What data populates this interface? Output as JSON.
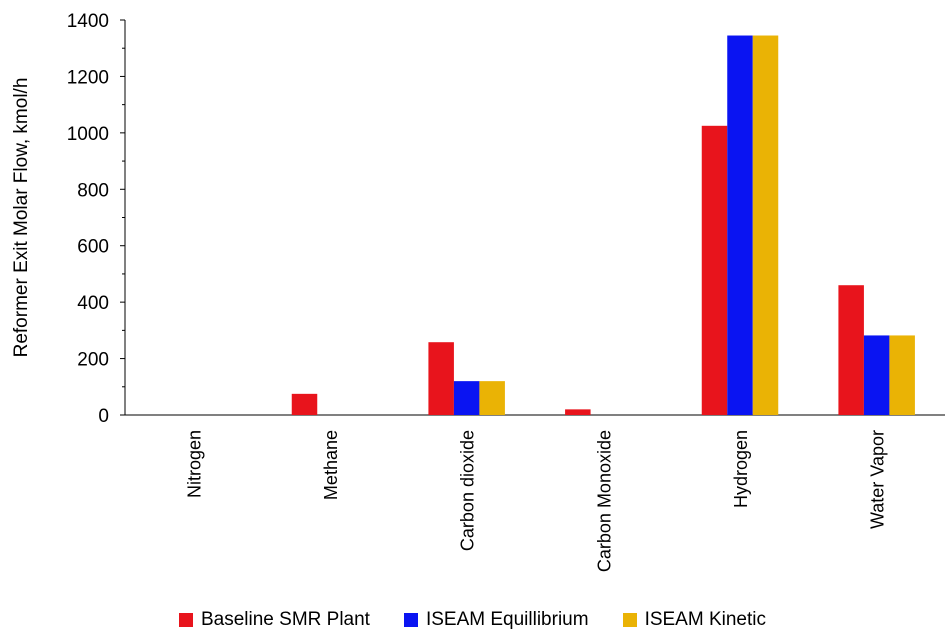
{
  "chart_data": {
    "type": "bar",
    "title": "",
    "xlabel": "",
    "ylabel": "Reformer Exit Molar Flow, kmol/h",
    "ylim": [
      0,
      1400
    ],
    "yticks": [
      0,
      200,
      400,
      600,
      800,
      1000,
      1200,
      1400
    ],
    "categories": [
      "Nitrogen",
      "Methane",
      "Carbon dioxide",
      "Carbon Monoxide",
      "Hydrogen",
      "Water Vapor"
    ],
    "series": [
      {
        "name": "Baseline SMR Plant",
        "color": "#e8141c",
        "values": [
          0,
          75,
          258,
          20,
          1025,
          460
        ]
      },
      {
        "name": "ISEAM Equillibrium",
        "color": "#0a14f2",
        "values": [
          0,
          0,
          120,
          0,
          1345,
          282
        ]
      },
      {
        "name": "ISEAM Kinetic",
        "color": "#eab305",
        "values": [
          0,
          0,
          120,
          0,
          1345,
          282
        ]
      }
    ],
    "grid": false,
    "legend_position": "bottom"
  }
}
